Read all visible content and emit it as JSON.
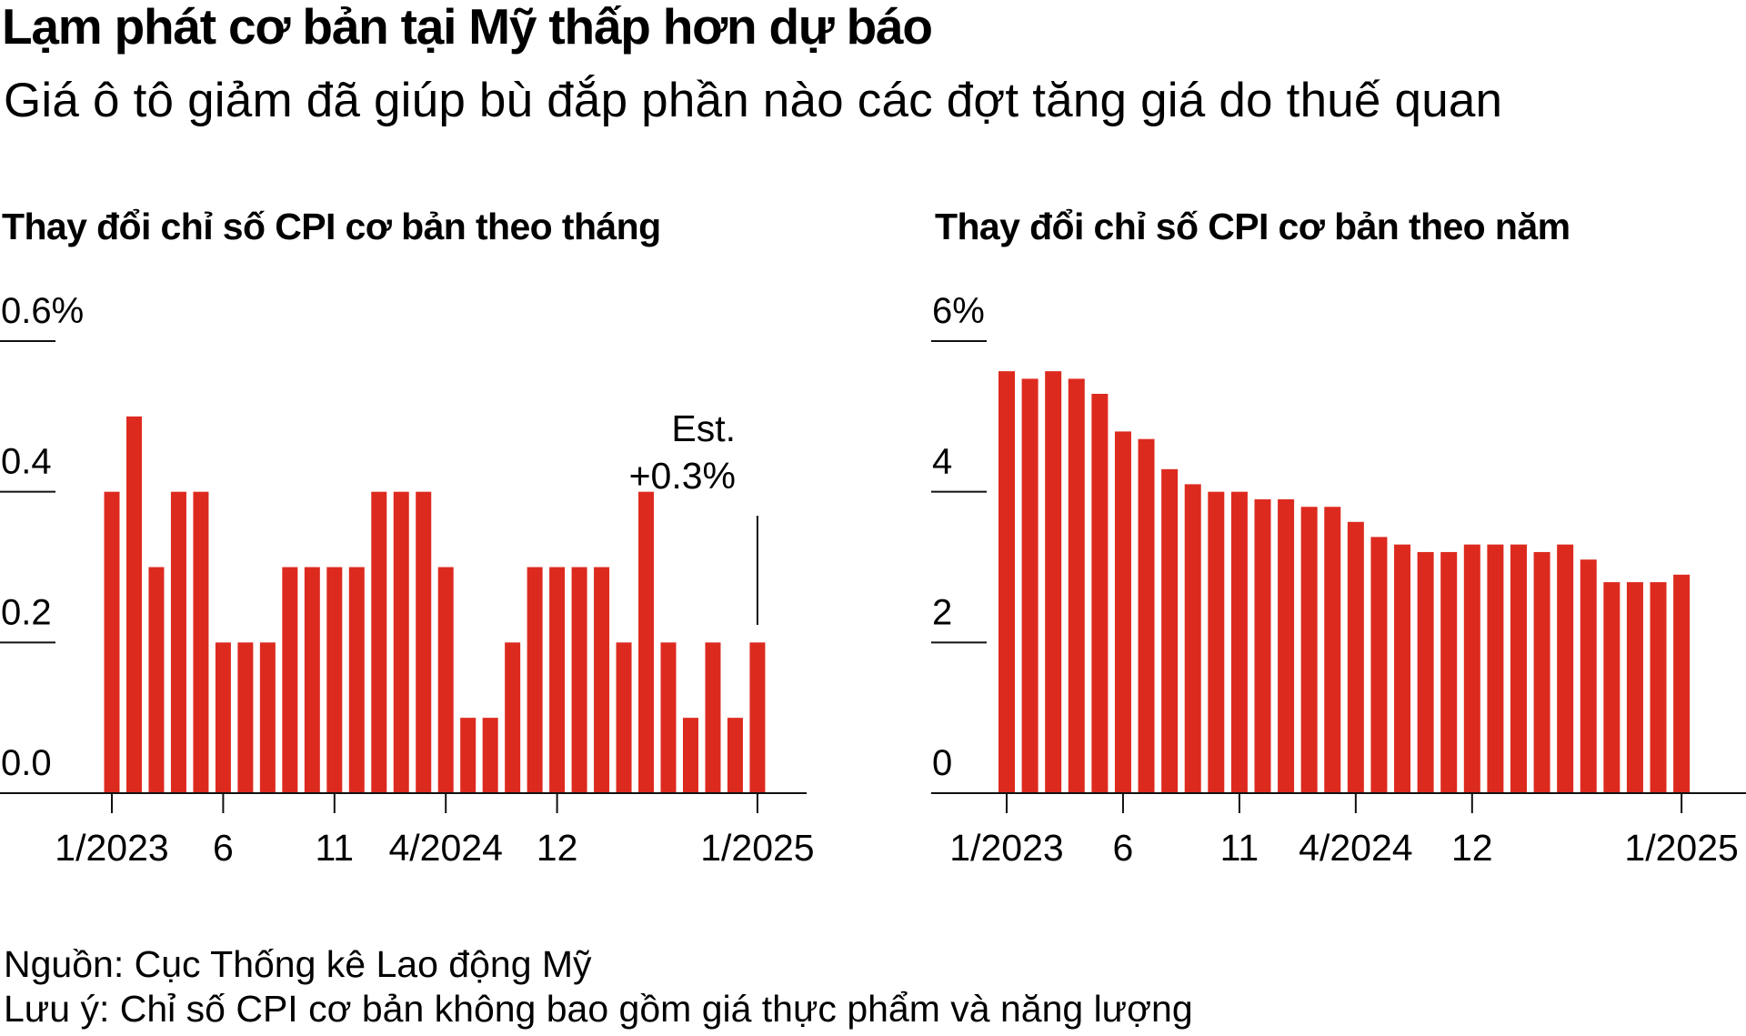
{
  "header": {
    "title": "Lạm phát cơ bản tại Mỹ thấp hơn dự báo",
    "subtitle": "Giá ô tô giảm đã giúp bù đắp phần nào các đợt tăng giá do thuế quan"
  },
  "colors": {
    "bar": "#DD2A1F",
    "axis": "#111111",
    "text": "#000000"
  },
  "footer": {
    "source": "Nguồn: Cục Thống kê Lao động Mỹ",
    "note": "Lưu ý: Chỉ số CPI cơ bản không bao gồm giá thực phẩm và năng lượng"
  },
  "chart_data": [
    {
      "type": "bar",
      "title": "Thay đổi chỉ số CPI cơ bản theo tháng",
      "xlabel": "",
      "ylabel": "",
      "unit": "%",
      "ylim": [
        0,
        0.6
      ],
      "yticks": [
        0.0,
        0.2,
        0.4,
        0.6
      ],
      "ytick_labels": [
        "0.0",
        "0.2",
        "0.4",
        "0.6%"
      ],
      "grid": false,
      "xtick_positions": [
        1,
        6,
        11,
        16,
        21,
        30
      ],
      "xtick_labels": [
        "1/2023",
        "6",
        "11",
        "4/2024",
        "12",
        "1/2025"
      ],
      "annotation": {
        "line1": "Est.",
        "line2": "+0.3%",
        "bar_index": 30
      },
      "values": [
        0.4,
        0.5,
        0.3,
        0.4,
        0.4,
        0.2,
        0.2,
        0.2,
        0.3,
        0.3,
        0.3,
        0.3,
        0.4,
        0.4,
        0.4,
        0.3,
        0.1,
        0.1,
        0.2,
        0.3,
        0.3,
        0.3,
        0.3,
        0.2,
        0.4,
        0.2,
        0.1,
        0.2,
        0.1,
        0.2
      ]
    },
    {
      "type": "bar",
      "title": "Thay đổi chỉ số CPI cơ bản theo năm",
      "xlabel": "",
      "ylabel": "",
      "unit": "%",
      "ylim": [
        0,
        6
      ],
      "yticks": [
        0,
        2,
        4,
        6
      ],
      "ytick_labels": [
        "0",
        "2",
        "4",
        "6%"
      ],
      "grid": false,
      "xtick_positions": [
        1,
        6,
        11,
        16,
        21,
        30
      ],
      "xtick_labels": [
        "1/2023",
        "6",
        "11",
        "4/2024",
        "12",
        "1/2025"
      ],
      "values": [
        5.6,
        5.5,
        5.6,
        5.5,
        5.3,
        4.8,
        4.7,
        4.3,
        4.1,
        4.0,
        4.0,
        3.9,
        3.9,
        3.8,
        3.8,
        3.6,
        3.4,
        3.3,
        3.2,
        3.2,
        3.3,
        3.3,
        3.3,
        3.2,
        3.3,
        3.1,
        2.8,
        2.8,
        2.8,
        2.9
      ]
    }
  ]
}
